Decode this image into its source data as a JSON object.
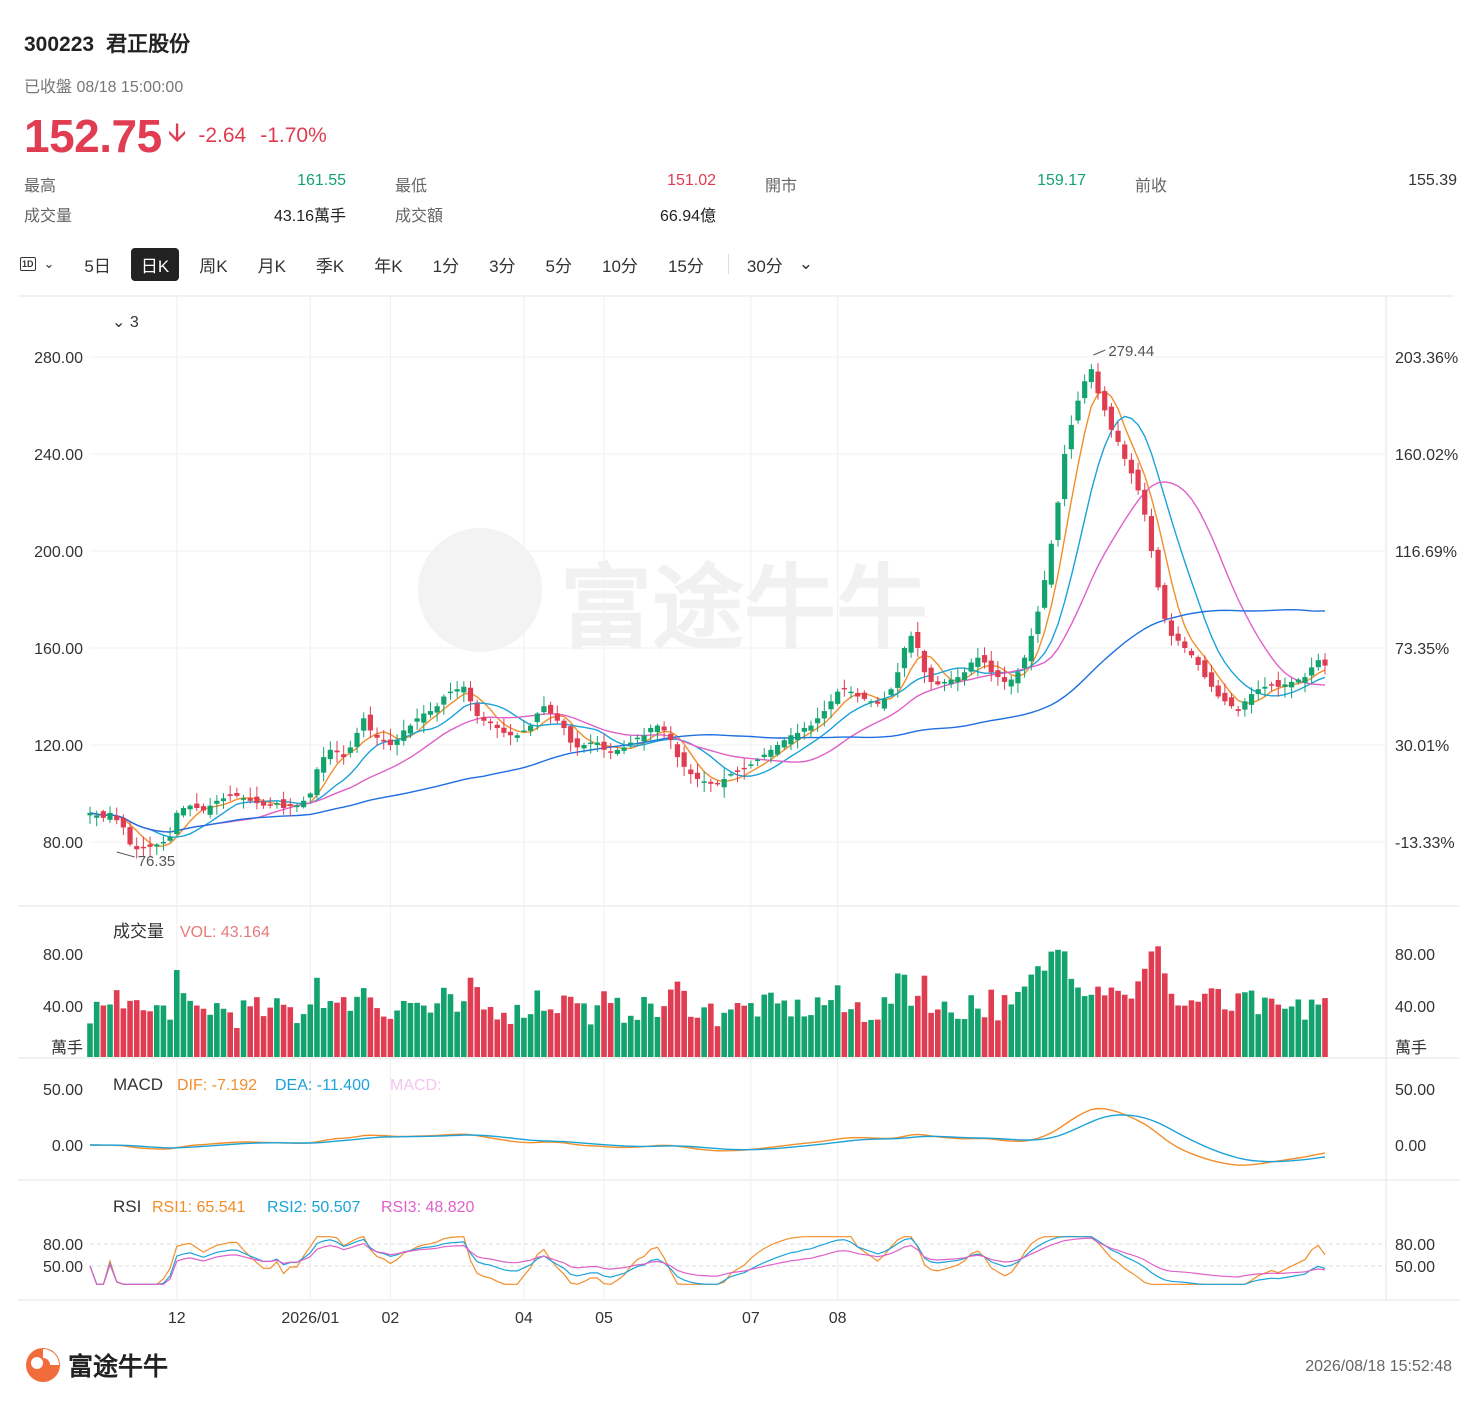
{
  "header": {
    "code": "300223",
    "name": "君正股份",
    "status": "已收盤 08/18 15:00:00",
    "price": "152.75",
    "arrow": "down",
    "change": "-2.64",
    "change_pct": "-1.70%"
  },
  "stats": [
    {
      "label": "最高",
      "value": "161.55",
      "color": "#13a36e"
    },
    {
      "label": "最低",
      "value": "151.02",
      "color": "#e03c52"
    },
    {
      "label": "開市",
      "value": "159.17",
      "color": "#13a36e"
    },
    {
      "label": "前收",
      "value": "155.39",
      "color": "#333333"
    },
    {
      "label": "成交量",
      "value": "43.16萬手",
      "color": "#222222"
    },
    {
      "label": "成交額",
      "value": "66.94億",
      "color": "#222222"
    }
  ],
  "toolbar": {
    "first": "1D",
    "items": [
      "5日",
      "日K",
      "周K",
      "月K",
      "季K",
      "年K",
      "1分",
      "3分",
      "5分",
      "10分",
      "15分",
      "30分"
    ],
    "active": "日K"
  },
  "colors": {
    "up": "#13a36e",
    "down": "#e03c52",
    "ma1": "#f28e2b",
    "ma2": "#1ba3d9",
    "ma3": "#e060c8",
    "ma4": "#1f6fe0"
  },
  "footer": {
    "logo": "富途牛牛",
    "time": "2026/08/18 15:52:48"
  },
  "chart_data": {
    "type": "candlestick",
    "ma_toggle": "3",
    "price_axis": {
      "ticks": [
        "280.00",
        "240.00",
        "200.00",
        "160.00",
        "120.00",
        "80.00"
      ],
      "range": [
        57,
        305
      ]
    },
    "pct_axis": {
      "ticks": [
        "203.36%",
        "160.02%",
        "116.69%",
        "73.35%",
        "30.01%",
        "-13.33%"
      ]
    },
    "annotations": {
      "high": "279.44",
      "low": "76.35"
    },
    "x_labels": [
      "12",
      "2026/01",
      "02",
      "04",
      "05",
      "07",
      "08"
    ],
    "x_label_index": [
      13,
      33,
      45,
      65,
      77,
      99,
      112
    ],
    "series_close": [
      92,
      91,
      90,
      92,
      89,
      86,
      79,
      77,
      78,
      78,
      79,
      80,
      82,
      92,
      94,
      95,
      94,
      93,
      95,
      97,
      98,
      99,
      99,
      98,
      97,
      96,
      95,
      95,
      96,
      94,
      95,
      95,
      97,
      100,
      110,
      115,
      118,
      117,
      115,
      119,
      125,
      131,
      126,
      123,
      122,
      120,
      122,
      126,
      128,
      131,
      133,
      134,
      136,
      140,
      142,
      143,
      144,
      138,
      132,
      130,
      129,
      127,
      125,
      124,
      124,
      126,
      128,
      133,
      136,
      133,
      130,
      127,
      121,
      119,
      120,
      121,
      121,
      118,
      117,
      118,
      119,
      121,
      123,
      124,
      127,
      128,
      126,
      122,
      115,
      111,
      108,
      106,
      105,
      104,
      104,
      106,
      108,
      109,
      110,
      112,
      114,
      116,
      118,
      120,
      122,
      124,
      125,
      127,
      128,
      131,
      134,
      138,
      142,
      143,
      142,
      140,
      139,
      138,
      137,
      139,
      143,
      150,
      160,
      165,
      160,
      150,
      146,
      145,
      146,
      147,
      148,
      150,
      154,
      156,
      154,
      150,
      148,
      146,
      147,
      150,
      156,
      165,
      175,
      188,
      203,
      220,
      240,
      252,
      262,
      270,
      275,
      265,
      258,
      250,
      245,
      238,
      232,
      225,
      215,
      200,
      185,
      172,
      165,
      163,
      160,
      157,
      153,
      148,
      144,
      140,
      138,
      136,
      134,
      138,
      141,
      143,
      144,
      145,
      144,
      145,
      146,
      147,
      148,
      152,
      155,
      152.75
    ],
    "vol_axis": {
      "ticks": [
        "80.00",
        "40.00"
      ],
      "unit": "萬手"
    },
    "vol_label": {
      "name": "成交量",
      "value": "VOL: 43.164"
    },
    "macd_axis": {
      "ticks": [
        "50.00",
        "0.00"
      ]
    },
    "macd_label": {
      "name": "MACD",
      "dif": "DIF: -7.192",
      "dea": "DEA: -11.400",
      "macd": "MACD:"
    },
    "rsi_axis": {
      "ticks": [
        "80.00",
        "50.00"
      ]
    },
    "rsi_label": {
      "name": "RSI",
      "rsi1": "RSI1: 65.541",
      "rsi2": "RSI2: 50.507",
      "rsi3": "RSI3: 48.820"
    }
  }
}
